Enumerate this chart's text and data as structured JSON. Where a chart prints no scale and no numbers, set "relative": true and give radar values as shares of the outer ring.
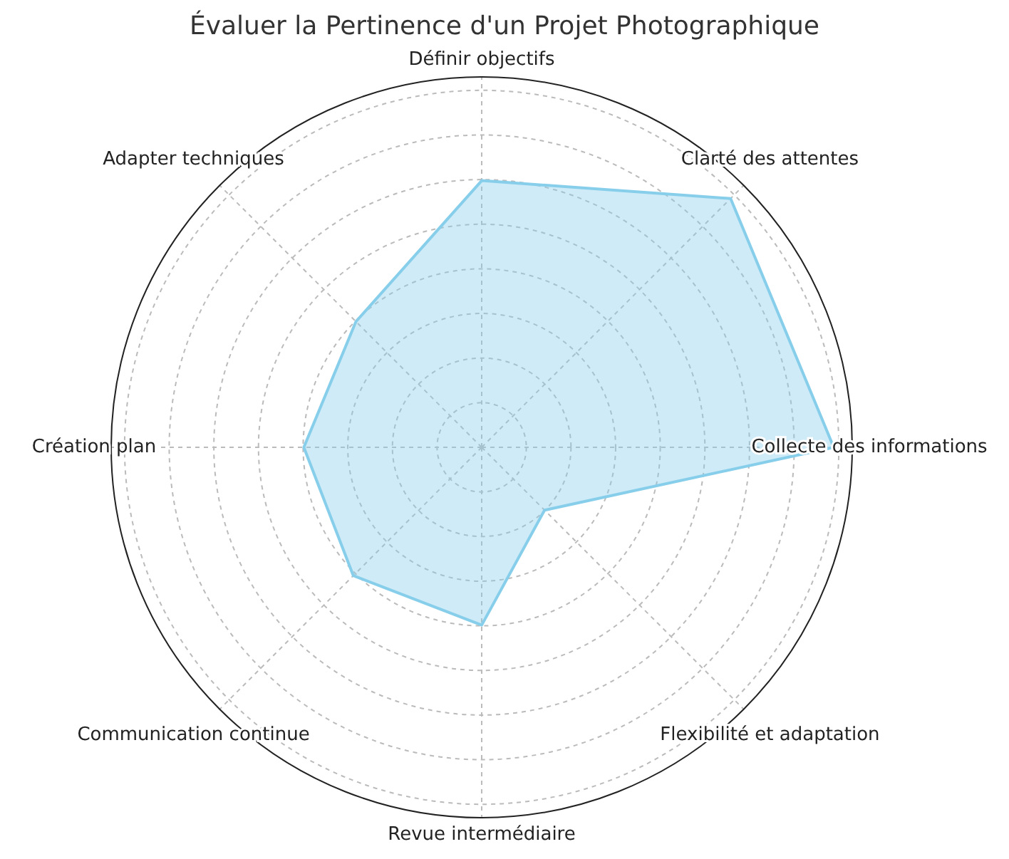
{
  "chart_data": {
    "type": "radar",
    "title": "Évaluer la Pertinence d'un Projet Photographique",
    "relative": true,
    "grid": true,
    "categories": [
      "Définir objectifs",
      "Clarté des attentes",
      "Collecte des informations",
      "Flexibilité et adaptation",
      "Revue intermédiaire",
      "Communication continue",
      "Création plan",
      "Adapter techniques"
    ],
    "series": [
      {
        "color": "#87ceeb",
        "values": [
          0.72,
          0.95,
          0.95,
          0.24,
          0.48,
          0.49,
          0.48,
          0.48
        ]
      }
    ]
  }
}
